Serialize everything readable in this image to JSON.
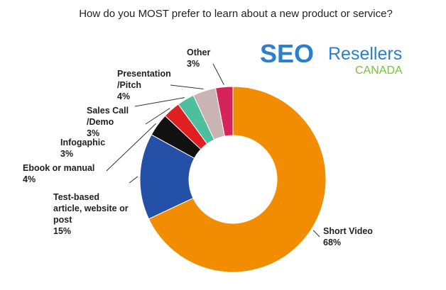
{
  "chart_data": {
    "type": "donut",
    "title": "How do you MOST prefer to learn about a new product or service?",
    "categories": [
      "Short Video",
      "Test-based\narticle, website or\npost",
      "Ebook or manual",
      "Infogaphic",
      "Sales Call\n/Demo",
      "Presentation\n/Pitch",
      "Other"
    ],
    "values": [
      68,
      15,
      4,
      3,
      3,
      4,
      3
    ],
    "value_labels": [
      "68%",
      "15%",
      "4%",
      "3%",
      "3%",
      "4%",
      "3%"
    ],
    "colors": [
      "#f28c00",
      "#2450a8",
      "#111111",
      "#e02020",
      "#4dbf9f",
      "#c9b3b3",
      "#d4245a"
    ]
  },
  "logo": {
    "mark": "SEO",
    "name": "Resellers",
    "region": "CANADA"
  }
}
